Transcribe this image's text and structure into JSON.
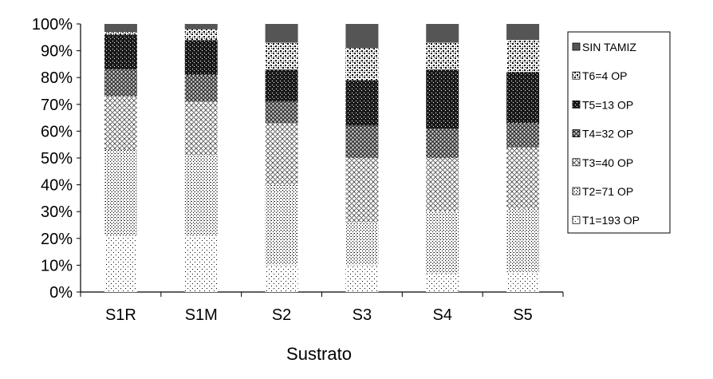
{
  "chart_data": {
    "type": "bar",
    "stacked": true,
    "normalized_percent": true,
    "xlabel": "Sustrato",
    "ylabel": "",
    "title": "",
    "ylim": [
      0,
      100
    ],
    "y_ticks": [
      "0%",
      "10%",
      "20%",
      "30%",
      "40%",
      "50%",
      "60%",
      "70%",
      "80%",
      "90%",
      "100%"
    ],
    "categories": [
      "S1R",
      "S1M",
      "S2",
      "S3",
      "S4",
      "S5"
    ],
    "series": [
      {
        "name": "T1=193 OP",
        "pattern": "dots-sparse",
        "values": [
          21,
          21,
          10,
          10,
          7,
          7.5
        ]
      },
      {
        "name": "T2=71 OP",
        "pattern": "dots-dense",
        "values": [
          32,
          30,
          30,
          16,
          23,
          23.5
        ]
      },
      {
        "name": "T3=40 OP",
        "pattern": "crosshatch-light",
        "values": [
          20,
          20,
          23,
          24,
          20,
          23
        ]
      },
      {
        "name": "T4=32 OP",
        "pattern": "crosshatch-dark",
        "values": [
          10,
          10,
          8,
          12,
          11,
          9
        ]
      },
      {
        "name": "T5=13 OP",
        "pattern": "dark-speckle",
        "values": [
          13,
          13,
          12,
          17,
          22,
          19
        ]
      },
      {
        "name": "T6=4 OP",
        "pattern": "checker",
        "values": [
          1,
          4,
          10,
          12,
          10,
          12
        ]
      },
      {
        "name": "SIN TAMIZ",
        "pattern": "solid",
        "color": "#555555",
        "values": [
          3,
          2,
          7,
          9,
          7,
          6
        ]
      }
    ],
    "legend_order": [
      "SIN TAMIZ",
      "T6=4 OP",
      "T5=13 OP",
      "T4=32 OP",
      "T3=40 OP",
      "T2=71 OP",
      "T1=193 OP"
    ],
    "legend_position": "right",
    "grid": false
  }
}
